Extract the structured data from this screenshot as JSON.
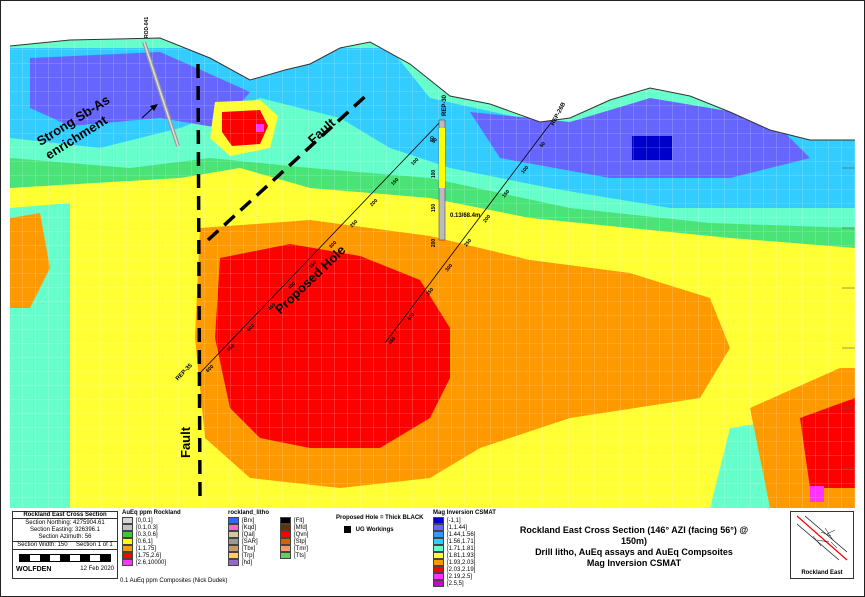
{
  "annotations": {
    "sb_as": "Strong Sb-As\nenrichment",
    "fault_upper": "Fault",
    "fault_lower": "Fault",
    "proposed_hole": "Proposed Hole"
  },
  "drillholes": [
    {
      "name": "REP-30",
      "depth_labels": [
        "50",
        "100",
        "150",
        "200"
      ],
      "assay_label": "0.13/68.4m"
    },
    {
      "name": "REP-26B",
      "depth_labels": [
        "50",
        "100",
        "150",
        "200",
        "250",
        "300",
        "350",
        "400",
        "450"
      ]
    },
    {
      "name": "REP-35",
      "depth_labels": [
        "50",
        "100",
        "150",
        "200",
        "250",
        "300",
        "350",
        "400",
        "450",
        "500",
        "550",
        "600"
      ]
    },
    {
      "name": "ROD-041",
      "depth_labels": []
    }
  ],
  "info_block": {
    "title": "Rockland East Cross Section",
    "northing": "Section Northing: 4275904.61",
    "easting": "Section Easting: 326396.1",
    "azimuth": "Section Azimuth: 56",
    "width": "Section Width: 150",
    "sheet": "Section 1 of 1",
    "logo": "WOLFDEN",
    "date": "12 Feb 2020"
  },
  "legend_aueq": {
    "title": "AuEq ppm Rockland",
    "items": [
      {
        "label": "[0,0.1]",
        "color": "#d6d6d6"
      },
      {
        "label": "[0.1,0.3]",
        "color": "#c2c2c2"
      },
      {
        "label": "[0.3,0.6]",
        "color": "#33cc33"
      },
      {
        "label": "[0.6,1]",
        "color": "#ffff00"
      },
      {
        "label": "[1,1.75]",
        "color": "#ff9900"
      },
      {
        "label": "[1.75,2.6]",
        "color": "#ff0000"
      },
      {
        "label": "[2.6,10000]",
        "color": "#ff33ff"
      }
    ],
    "footnote": "0.1 AuEq ppm Composites (Nick Dudek)"
  },
  "legend_litho": {
    "title": "rockland_litho",
    "items": [
      {
        "label": "[Brx]",
        "color": "#3366ff"
      },
      {
        "label": "[Kqd]",
        "color": "#ff66cc"
      },
      {
        "label": "[Qal]",
        "color": "#cccc99"
      },
      {
        "label": "[SAR]",
        "color": "#999999"
      },
      {
        "label": "[Tbx]",
        "color": "#cc9966"
      },
      {
        "label": "[Trp]",
        "color": "#ffcc66"
      },
      {
        "label": "[hd]",
        "color": "#9966cc"
      },
      {
        "label": "[Flt]",
        "color": "#000000"
      },
      {
        "label": "[Mfd]",
        "color": "#663300"
      },
      {
        "label": "[Qvn]",
        "color": "#ff0000"
      },
      {
        "label": "[Stp]",
        "color": "#cc6600"
      },
      {
        "label": "[Tmr]",
        "color": "#ff9966"
      },
      {
        "label": "[Tts]",
        "color": "#66cc66"
      }
    ]
  },
  "legend_hole": {
    "title": "Proposed Hole = Thick BLACK",
    "item": "UG Workings"
  },
  "legend_mag": {
    "title": "Mag Inversion CSMAT",
    "items": [
      {
        "label": "[-1,1]",
        "color": "#0000cc"
      },
      {
        "label": "[1,1.44]",
        "color": "#6666ff"
      },
      {
        "label": "[1.44,1.56]",
        "color": "#3399ff"
      },
      {
        "label": "[1.56,1.71]",
        "color": "#33ccff"
      },
      {
        "label": "[1.71,1.81]",
        "color": "#66ffcc"
      },
      {
        "label": "[1.81,1.93]",
        "color": "#ffff33"
      },
      {
        "label": "[1.93,2.03]",
        "color": "#ff9900"
      },
      {
        "label": "[2.03,2.19]",
        "color": "#ff0000"
      },
      {
        "label": "[2.19,2.5]",
        "color": "#ff33ff"
      },
      {
        "label": "[2.5,5]",
        "color": "#cc00cc"
      }
    ]
  },
  "main_title": {
    "line1": "Rockland East Cross Section (146° AZI (facing 56°) @ 150m)",
    "line2": "Drill litho, AuEq assays and AuEq Compsoites",
    "line3": "Mag Inversion CSMAT"
  },
  "locator": {
    "label": "Rockland East"
  }
}
